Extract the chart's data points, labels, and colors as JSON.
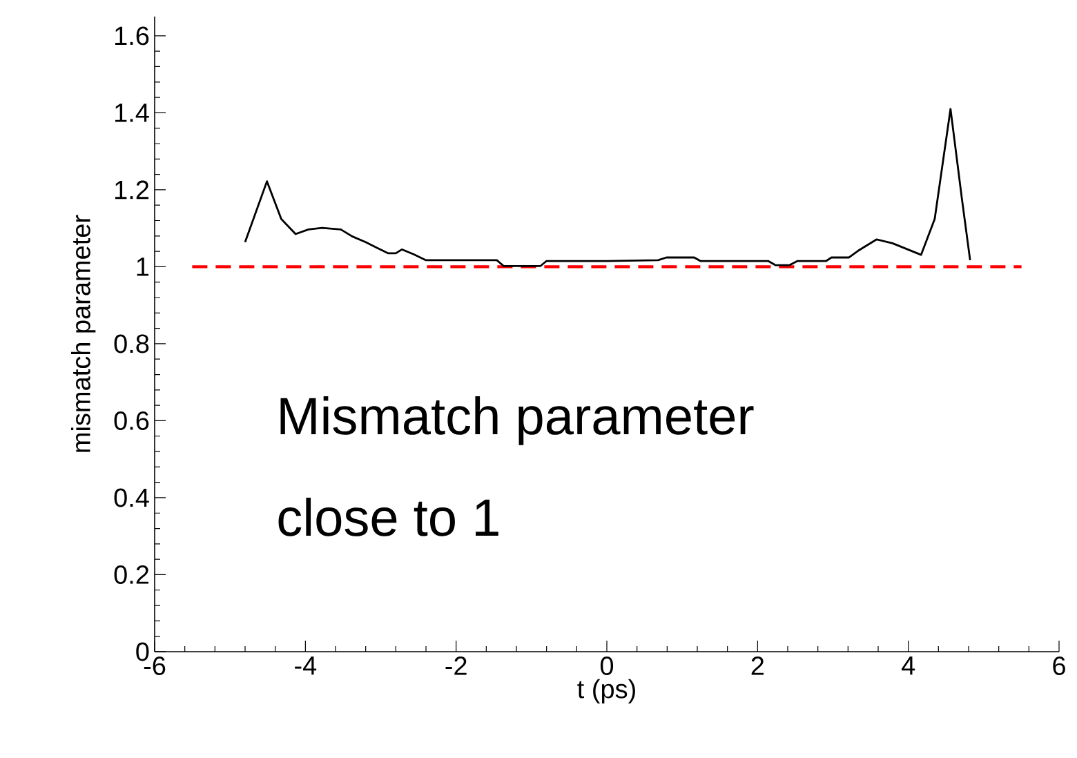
{
  "chart_data": {
    "type": "line",
    "xlabel": "t (ps)",
    "ylabel": "mismatch parameter",
    "x": [
      -4.8,
      -4.51,
      -4.32,
      -4.13,
      -3.96,
      -3.78,
      -3.53,
      -3.38,
      -3.2,
      -3.05,
      -2.9,
      -2.8,
      -2.72,
      -2.56,
      -2.4,
      -1.46,
      -1.37,
      -0.88,
      -0.8,
      0.01,
      0.68,
      0.79,
      1.16,
      1.24,
      2.14,
      2.24,
      2.42,
      2.53,
      2.91,
      2.98,
      3.21,
      3.33,
      3.58,
      3.79,
      4.17,
      4.35,
      4.56,
      4.71,
      4.82
    ],
    "values": [
      1.064,
      1.222,
      1.124,
      1.085,
      1.097,
      1.101,
      1.097,
      1.079,
      1.064,
      1.049,
      1.035,
      1.035,
      1.045,
      1.032,
      1.017,
      1.017,
      1.002,
      1.002,
      1.015,
      1.015,
      1.017,
      1.024,
      1.024,
      1.015,
      1.015,
      1.004,
      1.004,
      1.015,
      1.015,
      1.024,
      1.024,
      1.041,
      1.071,
      1.061,
      1.031,
      1.124,
      1.41,
      1.178,
      1.017
    ],
    "color": "#000000",
    "xlim": [
      -6,
      6
    ],
    "ylim": [
      0,
      1.65
    ],
    "xticks": [
      -6,
      -4,
      -2,
      0,
      2,
      4,
      6
    ],
    "yticks": [
      0,
      0.2,
      0.4,
      0.6,
      0.8,
      1,
      1.2,
      1.4,
      1.6
    ],
    "ref_lines": [
      {
        "axis": "y",
        "value": 1,
        "color": "#ff0000",
        "line_style": "dashed"
      }
    ],
    "annotations": [
      "Mismatch parameter",
      "close to 1"
    ],
    "grid": false,
    "marker": "none",
    "line_style": "solid"
  }
}
